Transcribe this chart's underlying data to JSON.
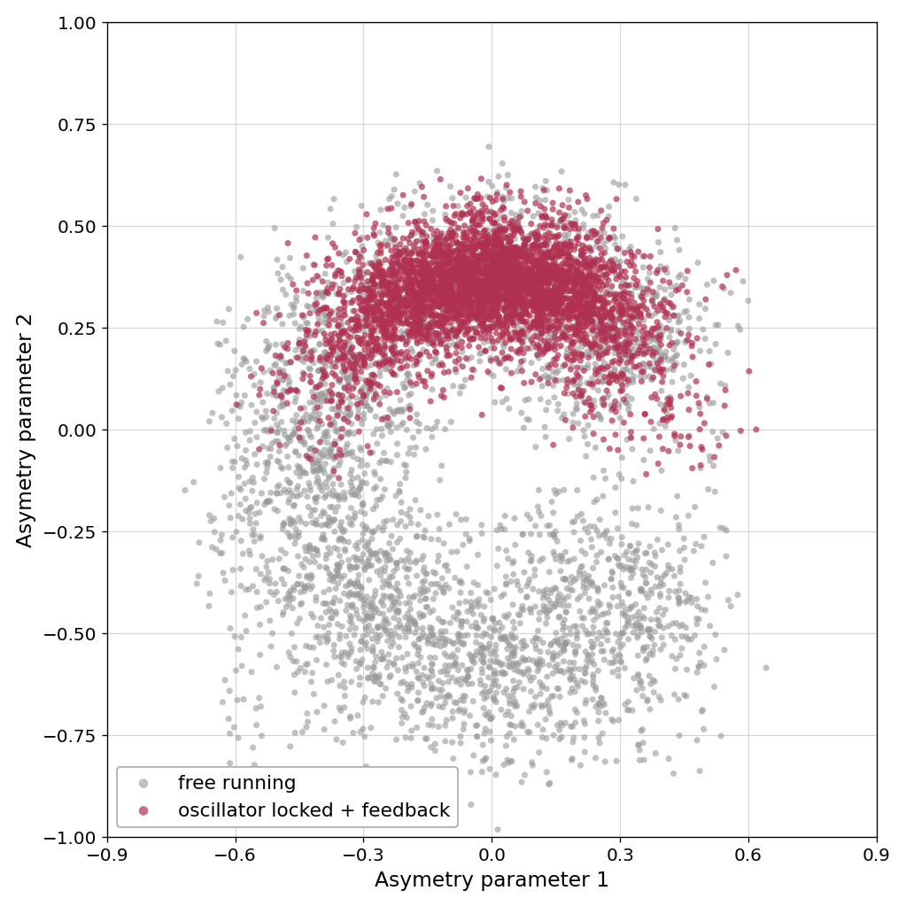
{
  "xlabel": "Asymetry parameter 1",
  "ylabel": "Asymetry parameter 2",
  "xlim": [
    -0.9,
    0.9
  ],
  "ylim": [
    -1.0,
    1.0
  ],
  "xticks": [
    -0.9,
    -0.6,
    -0.3,
    0.0,
    0.3,
    0.6,
    0.9
  ],
  "yticks": [
    -1.0,
    -0.75,
    -0.5,
    -0.25,
    0.0,
    0.25,
    0.5,
    0.75,
    1.0
  ],
  "gray_color": "#999999",
  "red_color": "#b03050",
  "gray_alpha": 0.6,
  "red_alpha": 0.7,
  "marker_size": 18,
  "legend_labels": [
    "free running",
    "oscillator locked + feedback"
  ],
  "background_color": "#ffffff",
  "grid_color": "#cccccc",
  "n_gray": 4000,
  "n_red": 3000,
  "seed": 42,
  "figsize": [
    8.53,
    8.53
  ],
  "dpi": 120
}
